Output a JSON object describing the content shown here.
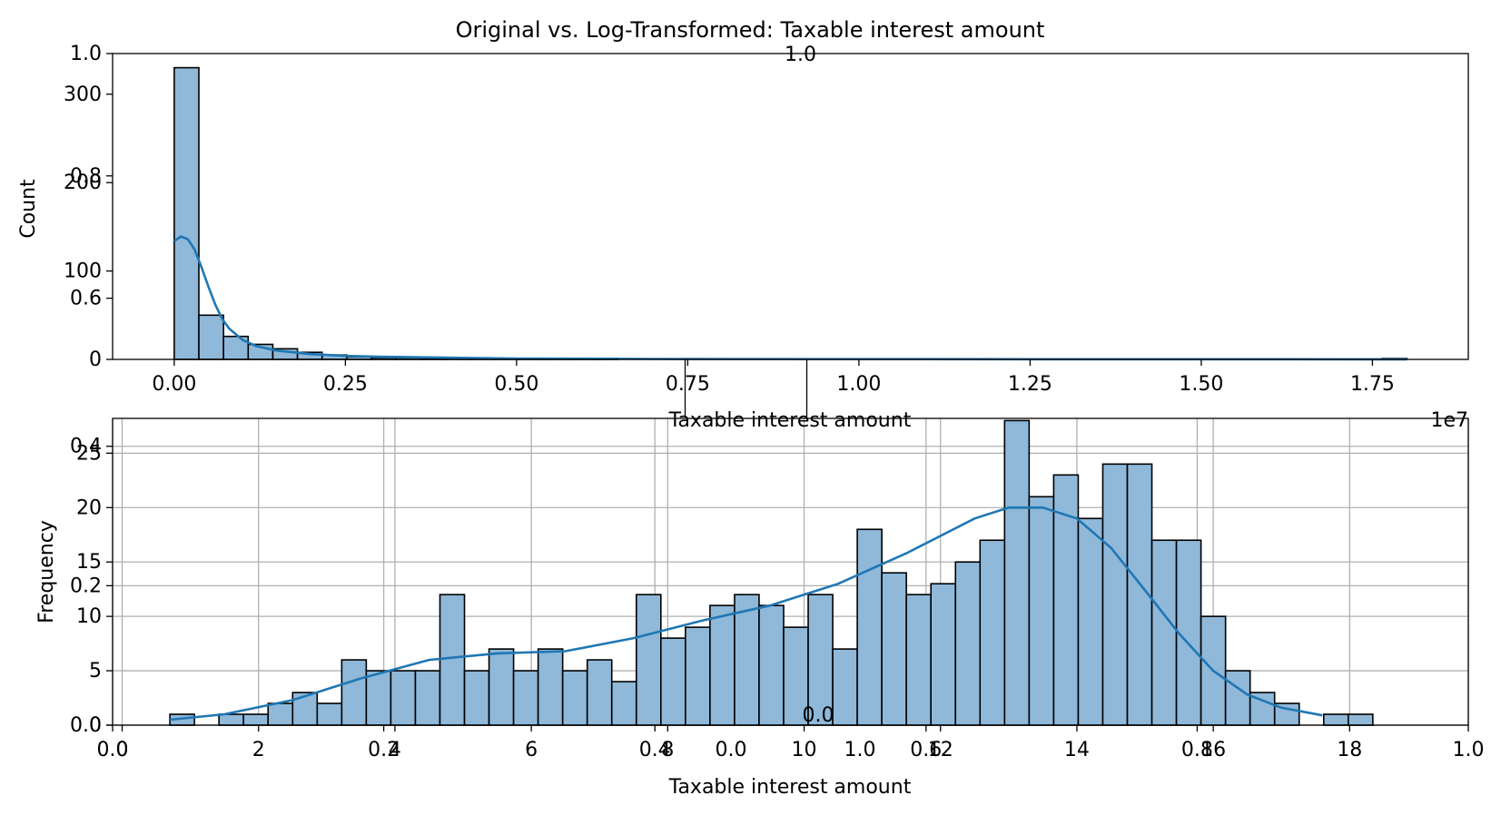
{
  "figure": {
    "title": "Original vs. Log-Transformed: Taxable interest amount"
  },
  "chart_data": [
    {
      "type": "bar",
      "panel": "top",
      "xlabel": "Taxable interest amount",
      "ylabel": "Count",
      "x_offset_text": "1e7",
      "xlim": [
        -0.09,
        1.89
      ],
      "ylim": [
        0,
        346
      ],
      "xticks": [
        0,
        0.25,
        0.5,
        0.75,
        1.0,
        1.25,
        1.5,
        1.75
      ],
      "xtick_labels": [
        "0.00",
        "0.25",
        "0.50",
        "0.75",
        "1.00",
        "1.25",
        "1.50",
        "1.75"
      ],
      "yticks": [
        0,
        100,
        200,
        300
      ],
      "bin_start": 0,
      "bin_width": 0.036,
      "counts": [
        330,
        50,
        26,
        17,
        12,
        8,
        5,
        3,
        2,
        2,
        1,
        1,
        1,
        1,
        1,
        1,
        1,
        1,
        0,
        0,
        0,
        0,
        0,
        0,
        0,
        0,
        0,
        0,
        0,
        0,
        0,
        0,
        0,
        0,
        0,
        0,
        0,
        0,
        0,
        0,
        0,
        0,
        0,
        0,
        0,
        0,
        0,
        0,
        0,
        1
      ],
      "kde": {
        "x": [
          0,
          0.01,
          0.02,
          0.03,
          0.04,
          0.05,
          0.06,
          0.07,
          0.08,
          0.1,
          0.12,
          0.15,
          0.2,
          0.25,
          0.3,
          0.4,
          0.5,
          0.7,
          1.0,
          1.4,
          1.8
        ],
        "y": [
          134,
          139,
          136,
          124,
          104,
          82,
          62,
          46,
          35,
          22,
          15,
          10,
          6,
          4,
          3,
          2,
          1,
          0.5,
          0.3,
          0.2,
          0.1
        ]
      },
      "overlay_axis": {
        "yticks": [
          0.6,
          0.8,
          1.0
        ],
        "ytick_labels": [
          "0.6",
          "0.8",
          "1.0"
        ],
        "ylim": [
          0.5,
          1.0
        ],
        "x_tick_label": "0.75",
        "top_label": "1.0"
      },
      "grid": false
    },
    {
      "type": "bar",
      "panel": "bottom",
      "xlabel": "Taxable interest amount",
      "ylabel": "Frequency",
      "xlim": [
        -0.14,
        19.74
      ],
      "ylim": [
        0,
        28.2
      ],
      "xticks": [
        0,
        2,
        4,
        6,
        8,
        10,
        12,
        14,
        16,
        18
      ],
      "xtick_labels": [
        "0",
        "2",
        "4",
        "6",
        "8",
        "10",
        "12",
        "14",
        "16",
        "18"
      ],
      "yticks": [
        0,
        5,
        10,
        15,
        20,
        25
      ],
      "ytick_labels": [
        "0",
        "5",
        "10",
        "15",
        "20",
        "25"
      ],
      "bin_start": 0.7,
      "bin_width": 0.36,
      "counts": [
        1,
        0,
        1,
        1,
        2,
        3,
        2,
        6,
        5,
        5,
        5,
        12,
        5,
        7,
        5,
        7,
        5,
        6,
        4,
        12,
        8,
        9,
        11,
        12,
        11,
        9,
        12,
        7,
        18,
        14,
        12,
        13,
        15,
        17,
        28,
        21,
        23,
        19,
        24,
        24,
        17,
        17,
        10,
        5,
        3,
        2,
        0,
        1,
        1
      ],
      "kde": {
        "x": [
          0.7,
          1.5,
          2.5,
          3.5,
          4.5,
          5.5,
          6.5,
          7.5,
          8.5,
          9.5,
          10.5,
          11.5,
          12.5,
          13,
          13.5,
          14,
          14.5,
          15,
          15.5,
          16,
          16.5,
          17,
          17.6
        ],
        "y": [
          0.5,
          1.0,
          2.3,
          4.3,
          6.0,
          6.6,
          6.8,
          8.0,
          9.6,
          11.0,
          13.0,
          15.8,
          19.0,
          20.0,
          20.0,
          19.0,
          16.3,
          12.4,
          8.4,
          5.0,
          2.8,
          1.6,
          0.9
        ]
      },
      "overlay_axis": {
        "xticks": [
          0.0,
          0.2,
          0.4,
          0.6,
          0.8,
          1.0
        ],
        "xtick_labels": [
          "0.0",
          "0.2",
          "0.4",
          "0.6",
          "0.8",
          "1.0"
        ],
        "yticks": [
          0.0,
          0.2,
          0.4
        ],
        "ytick_labels": [
          "0.0",
          "0.2",
          "0.4"
        ],
        "ylim": [
          0.0,
          0.44
        ],
        "center_xtick_labels": [
          "0.0",
          "0.2",
          "0.4",
          "0.6",
          "0.8",
          "1.0"
        ],
        "center_ytick_labels": [
          "0.0"
        ]
      },
      "grid": true
    }
  ]
}
